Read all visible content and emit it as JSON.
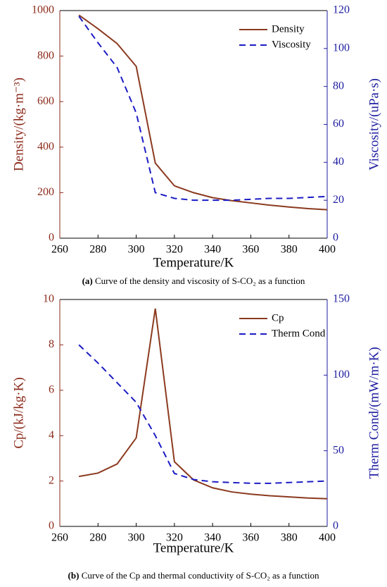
{
  "chart_data": [
    {
      "type": "line",
      "x": [
        270,
        280,
        290,
        300,
        310,
        320,
        330,
        340,
        350,
        360,
        370,
        380,
        390,
        400
      ],
      "series": [
        {
          "name": "Density",
          "color": "#8b3a1f",
          "style": "solid",
          "axis": "y",
          "values": [
            980,
            920,
            855,
            755,
            330,
            230,
            200,
            178,
            165,
            155,
            145,
            137,
            130,
            125
          ]
        },
        {
          "name": "Viscosity",
          "color": "#1c1cc4",
          "style": "dashed",
          "axis": "y2",
          "values": [
            117,
            103,
            90,
            66,
            24,
            21,
            20,
            20,
            20,
            20.5,
            21,
            21,
            21.5,
            22
          ]
        }
      ],
      "xlim": [
        260,
        400
      ],
      "xticks": [
        260,
        280,
        300,
        320,
        340,
        360,
        380,
        400
      ],
      "ylim": [
        0,
        1000
      ],
      "yticks": [
        0,
        200,
        400,
        600,
        800,
        1000
      ],
      "y2lim": [
        0,
        120
      ],
      "y2ticks": [
        0,
        20,
        40,
        60,
        80,
        100,
        120
      ],
      "xlabel": "Temperature/K",
      "ylabel": "Density/(kg·m⁻³)",
      "y2label": "Viscosity/(uPa·s)",
      "ycolor": "#8b2a1a",
      "y2color": "#1c1ca0",
      "legend": "upper right",
      "caption_label": "(a)",
      "caption": " Curve of the density and viscosity of S-CO₂ as a function"
    },
    {
      "type": "line",
      "x": [
        270,
        280,
        290,
        300,
        310,
        320,
        330,
        340,
        350,
        360,
        370,
        380,
        390,
        400
      ],
      "series": [
        {
          "name": "Cp",
          "color": "#8b3a1f",
          "style": "solid",
          "axis": "y",
          "values": [
            2.2,
            2.35,
            2.75,
            3.9,
            9.6,
            2.85,
            2.05,
            1.7,
            1.52,
            1.42,
            1.35,
            1.3,
            1.25,
            1.22
          ]
        },
        {
          "name": "Therm Cond",
          "color": "#1c1cc4",
          "style": "dashed",
          "axis": "y2",
          "values": [
            120,
            108,
            95,
            82,
            60,
            35,
            31,
            29.5,
            29,
            28.5,
            28.5,
            29,
            29.5,
            30
          ]
        }
      ],
      "xlim": [
        260,
        400
      ],
      "xticks": [
        260,
        280,
        300,
        320,
        340,
        360,
        380,
        400
      ],
      "ylim": [
        0,
        10
      ],
      "yticks": [
        0,
        2,
        4,
        6,
        8,
        10
      ],
      "y2lim": [
        0,
        150
      ],
      "y2ticks": [
        0,
        50,
        100,
        150
      ],
      "xlabel": "Temperature/K",
      "ylabel": "Cp/(kJ/kg·K)",
      "y2label": "Therm Cond/(mW/m·K)",
      "ycolor": "#8b2a1a",
      "y2color": "#1c1ca0",
      "legend": "upper right",
      "caption_label": "(b)",
      "caption": " Curve of the Cp and thermal conductivity of S-CO₂ as a function"
    }
  ]
}
